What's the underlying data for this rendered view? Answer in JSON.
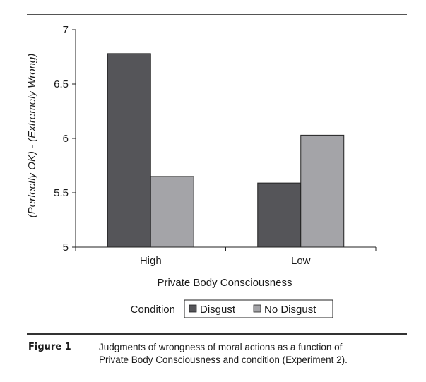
{
  "chart_data": {
    "type": "bar",
    "categories": [
      "High",
      "Low"
    ],
    "series": [
      {
        "name": "Disgust",
        "values": [
          6.78,
          5.59
        ],
        "color": "#555559"
      },
      {
        "name": "No Disgust",
        "values": [
          5.65,
          6.03
        ],
        "color": "#a4a4a8"
      }
    ],
    "ylim": [
      5,
      7
    ],
    "yticks": [
      "5",
      "5.5",
      "6",
      "6.5",
      "7"
    ],
    "ylabel": "(Perfectly OK) - (Extremely Wrong)",
    "xlabel": "Private Body Consciousness",
    "legend_title": "Condition",
    "legend_position": "bottom",
    "grid": false
  },
  "figure": {
    "label": "Figure 1",
    "caption_line1": "Judgments of wrongness of moral actions as a function of",
    "caption_line2": "Private Body Consciousness and condition (Experiment 2)."
  }
}
